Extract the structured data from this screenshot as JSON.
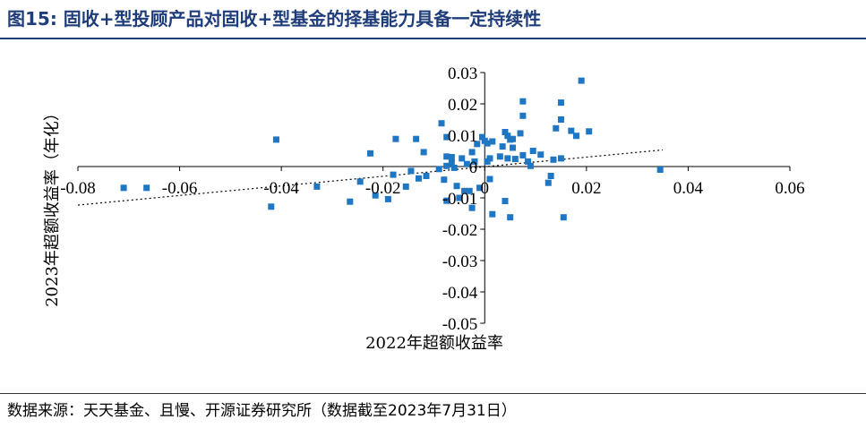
{
  "title": "图15:  固收+型投顾产品对固收+型基金的择基能力具备一定持续性",
  "source": "数据来源：天天基金、且慢、开源证券研究所（数据截至2023年7月31日）",
  "colors": {
    "title": "#1f3d7a",
    "marker": "#1f77c4",
    "axis": "#000000"
  },
  "chart_data": {
    "type": "scatter",
    "xlabel": "2022年超额收益率",
    "ylabel": "2023年超额收益率（年化）",
    "xlim": [
      -0.08,
      0.06
    ],
    "ylim": [
      -0.05,
      0.03
    ],
    "xticks": [
      "-0.08",
      "-0.06",
      "-0.04",
      "-0.02",
      "0",
      "0.02",
      "0.04",
      "0.06"
    ],
    "yticks": [
      "0.03",
      "0.02",
      "0.01",
      "0",
      "-0.01",
      "-0.02",
      "-0.03",
      "-0.04",
      "-0.05"
    ],
    "grid": false,
    "trendline": {
      "type": "linear",
      "style": "dotted",
      "from": [
        -0.08,
        -0.0123
      ],
      "to": [
        0.035,
        0.0053
      ]
    },
    "points": [
      [
        -0.071,
        -0.0068
      ],
      [
        -0.0665,
        -0.0068
      ],
      [
        -0.041,
        0.0086
      ],
      [
        -0.033,
        -0.0064
      ],
      [
        -0.0265,
        -0.0112
      ],
      [
        -0.0245,
        -0.0048
      ],
      [
        -0.0225,
        0.0042
      ],
      [
        -0.0215,
        -0.0092
      ],
      [
        -0.019,
        -0.0104
      ],
      [
        -0.018,
        -0.0026
      ],
      [
        -0.0175,
        0.0088
      ],
      [
        -0.0155,
        -0.0064
      ],
      [
        -0.0145,
        -0.0014
      ],
      [
        -0.013,
        -0.0038
      ],
      [
        -0.0135,
        0.0088
      ],
      [
        -0.012,
        0.0046
      ],
      [
        -0.0115,
        -0.003
      ],
      [
        -0.009,
        -0.0008
      ],
      [
        -0.0085,
        0.0138
      ],
      [
        -0.0075,
        0.0094
      ],
      [
        -0.0075,
        0.0032
      ],
      [
        -0.0075,
        0.0002
      ],
      [
        -0.008,
        -0.0042
      ],
      [
        -0.0075,
        -0.0109
      ],
      [
        -0.0065,
        0.003
      ],
      [
        -0.0065,
        0.0012
      ],
      [
        -0.006,
        -0.0004
      ],
      [
        -0.0055,
        -0.0062
      ],
      [
        -0.005,
        -0.01
      ],
      [
        -0.0045,
        0.0026
      ],
      [
        -0.004,
        -0.0078
      ],
      [
        -0.0035,
        0.0008
      ],
      [
        -0.003,
        -0.0078
      ],
      [
        -0.0025,
        -0.0132
      ],
      [
        -0.0025,
        0.0046
      ],
      [
        -0.002,
        0.0016
      ],
      [
        -0.0015,
        0.0072
      ],
      [
        -0.001,
        -0.0068
      ],
      [
        -0.0005,
        0.0094
      ],
      [
        0.0,
        0.0082
      ],
      [
        0.0005,
        0.0074
      ],
      [
        0.0005,
        0.0016
      ],
      [
        0.001,
        -0.004
      ],
      [
        0.001,
        0.0026
      ],
      [
        0.0015,
        0.008
      ],
      [
        0.0015,
        -0.0152
      ],
      [
        0.003,
        0.0032
      ],
      [
        0.0035,
        0.0064
      ],
      [
        0.004,
        0.011
      ],
      [
        0.004,
        -0.011
      ],
      [
        0.0045,
        0.0098
      ],
      [
        0.0045,
        0.0026
      ],
      [
        0.005,
        -0.0162
      ],
      [
        0.005,
        0.0086
      ],
      [
        0.0055,
        0.0088
      ],
      [
        0.0055,
        0.006
      ],
      [
        0.006,
        0.0024
      ],
      [
        0.007,
        0.0106
      ],
      [
        0.0075,
        0.0208
      ],
      [
        0.0075,
        0.0162
      ],
      [
        0.0075,
        0.0036
      ],
      [
        0.0085,
        0.0016
      ],
      [
        0.009,
        0.0002
      ],
      [
        0.0095,
        0.005
      ],
      [
        0.011,
        0.0038
      ],
      [
        0.0125,
        -0.0052
      ],
      [
        0.013,
        -0.003
      ],
      [
        0.0135,
        0.0022
      ],
      [
        0.014,
        0.0122
      ],
      [
        0.015,
        0.0204
      ],
      [
        0.015,
        0.015
      ],
      [
        0.015,
        0.0026
      ],
      [
        0.0155,
        -0.0162
      ],
      [
        0.017,
        0.0114
      ],
      [
        0.018,
        0.0098
      ],
      [
        0.019,
        0.0274
      ],
      [
        0.0205,
        0.0112
      ],
      [
        0.0345,
        -0.001
      ],
      [
        -0.042,
        -0.0128
      ]
    ]
  }
}
